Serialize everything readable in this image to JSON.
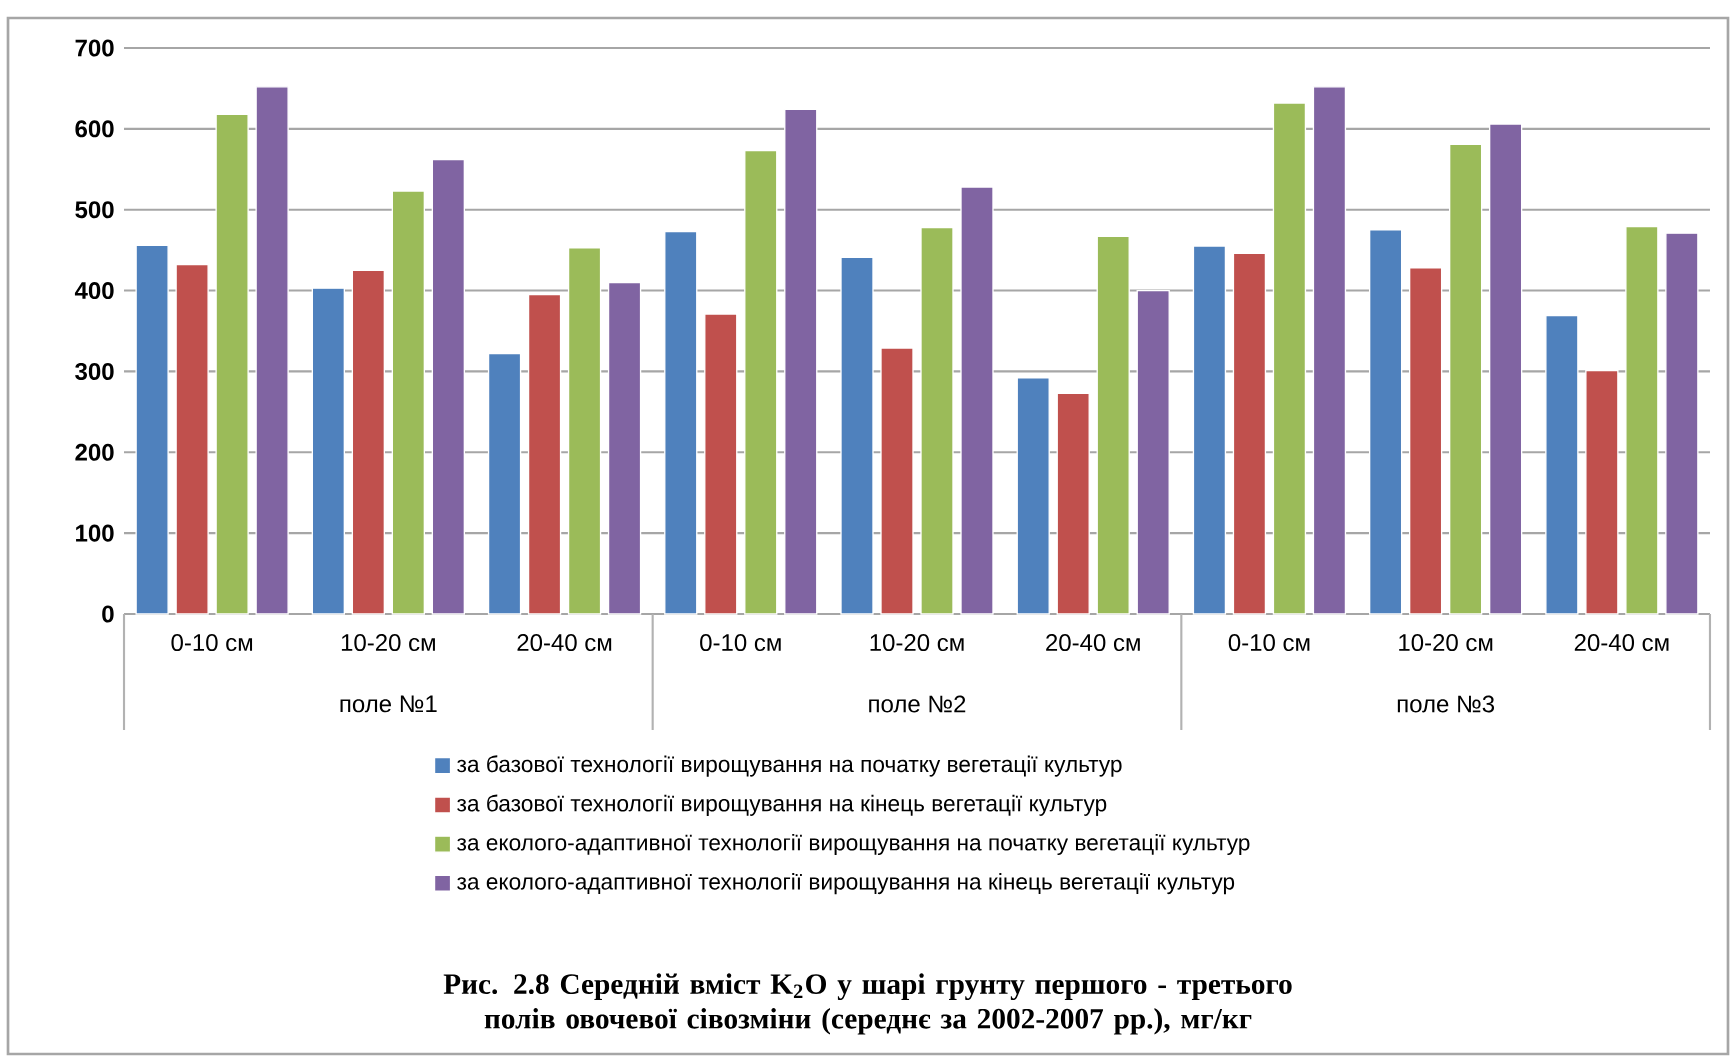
{
  "chart_data": {
    "type": "bar",
    "title": "Рис. 2.8 Середній вміст K$_{2}$O у шарі грунту першого - третього полів овочевої сівозміни (середнє за 2002-2007 рр.), мг/кг",
    "categories": [
      "0-10 см",
      "10-20 см",
      "20-40 см",
      "0-10 см",
      "10-20 см",
      "20-40 см",
      "0-10 см",
      "10-20 см",
      "20-40 см"
    ],
    "annotations": [
      "поле №1",
      "поле №2",
      "поле №3"
    ],
    "series": [
      {
        "name": "за базової технології вирощування на початку вегетації культур",
        "color": "#4f81bd",
        "values": [
          456,
          403,
          322,
          473,
          441,
          292,
          455,
          475,
          369
        ]
      },
      {
        "name": "за базової технології вирощування на кінець вегетації культур",
        "color": "#c0504d",
        "values": [
          432,
          425,
          395,
          371,
          329,
          273,
          446,
          428,
          301
        ]
      },
      {
        "name": "за еколого-адаптивної технології вирощування на початку вегетації культур",
        "color": "#9bbb59",
        "values": [
          618,
          523,
          453,
          573,
          478,
          467,
          632,
          581,
          479
        ]
      },
      {
        "name": "за еколого-адаптивної технології вирощування на кінець вегетації культур",
        "color": "#8064a2",
        "values": [
          652,
          562,
          410,
          624,
          528,
          400,
          652,
          606,
          471
        ]
      }
    ],
    "ylim": [
      0,
      700
    ],
    "yticks": [
      0,
      100,
      200,
      300,
      400,
      500,
      600,
      700
    ],
    "grid": "y",
    "legend": "bottom"
  }
}
